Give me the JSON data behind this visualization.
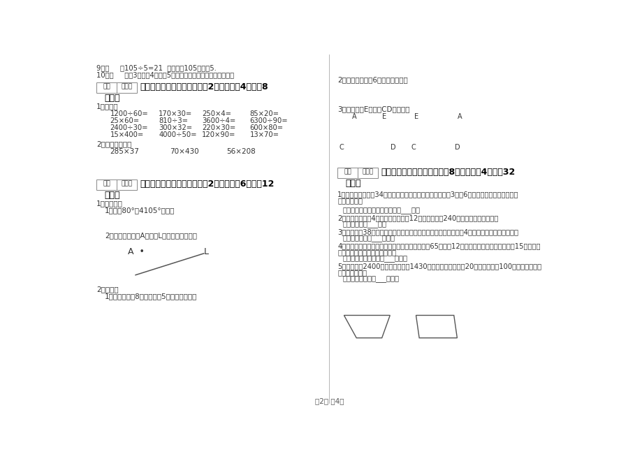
{
  "bg_color": "#ffffff",
  "text_color": "#333333",
  "bold_color": "#000000",
  "page_num_text": "第2页 关4页",
  "score_box_text1": "得分",
  "score_box_text2": "评卷人",
  "left": {
    "q9": "9、（     ）105÷5=21  我们就说105能整陊5.",
    "q10": "10、（     ）用3厘米、4厘米、5厘米的三根绳子不能围成三角形。",
    "sec4_title": "四、看清题目，细心计算（关2小题，每题4分，关8",
    "sec4_title2": "分）。",
    "sec4_q1": "1、口算。",
    "calc_rows": [
      [
        "1200÷60=",
        "170×30=",
        "250×4=",
        "85×20="
      ],
      [
        "25×60=",
        "810÷3=",
        "3600÷4=",
        "6300÷90="
      ],
      [
        "2400÷30=",
        "300×32=",
        "220×30=",
        "600×80="
      ],
      [
        "15×400=",
        "4000÷50=",
        "120×90=",
        "13×70="
      ]
    ],
    "sec4_q2": "2、用绞式计算。",
    "vert_calc": [
      "285×37",
      "70×430",
      "56×208"
    ],
    "sec5_title": "五、认真思考，综合能力（关2小题，每题6分，夗12",
    "sec5_title2": "分）。",
    "sec5_op": "1、操作题：",
    "sec5_op1": "1．画出80°、4105°的角。",
    "sec5_op2": "2．过直线外一点A画直线L的平行线和垂线。",
    "sec5_q2": "2、作图。",
    "sec5_q2_1": "1．画一个长为8厘米，宽为5厘米的长方形。"
  },
  "right": {
    "draw_q2": "2．画一个边长是6厘米的正方形。",
    "draw_q3": "3．分别过点E画线段CD的垂线。",
    "sec6_title": "六、应用知识，解决问题（关8小题，每题4分，夗32",
    "sec6_title2": "分）。",
    "sec6_q1_text": "1、学校买来羽毛瑣34个，买乒乓球的个数比羽毛球个数的3倍少6个，学校买来羽毛球和乒乓",
    "sec6_q1_text2": "球共多少个？",
    "sec6_q1_ans": "答：学校买来羽毛球和乒乓球共___个。",
    "sec6_q2_text": "2、日用品商店买4箘饮料，每箘饮慄12瓶，一共花了240元。每瓶饮料多少元？",
    "sec6_q2_ans": "答：每瓶饮料___元。",
    "sec6_q3_text": "3、冬冬体兠38千克，表弟体重是他的一半，而爸爸体重是表弟的4倍。爸爸体重是多少千克？",
    "sec6_q3_ans": "答：爸爸体重是___千克。",
    "sec6_q4_text": "4、一辆小汽车从甲地出发行驶乙地，每小时行馼65千米，12小时到达。从乙地返回时用了15小时，返",
    "sec6_q4_text2": "回时平均每小时行馼多少千米？",
    "sec6_q4_ans": "答：返回时每小时行馼___千米。",
    "sec6_q5_text": "5、粮店原有2400千克大米，卖出1430千克后，现在又运进20袋，平均每袋100千克。粮店现有",
    "sec6_q5_text2": "大米多少千克？",
    "sec6_q5_ans": "答：粮店现有大米___千克。"
  }
}
